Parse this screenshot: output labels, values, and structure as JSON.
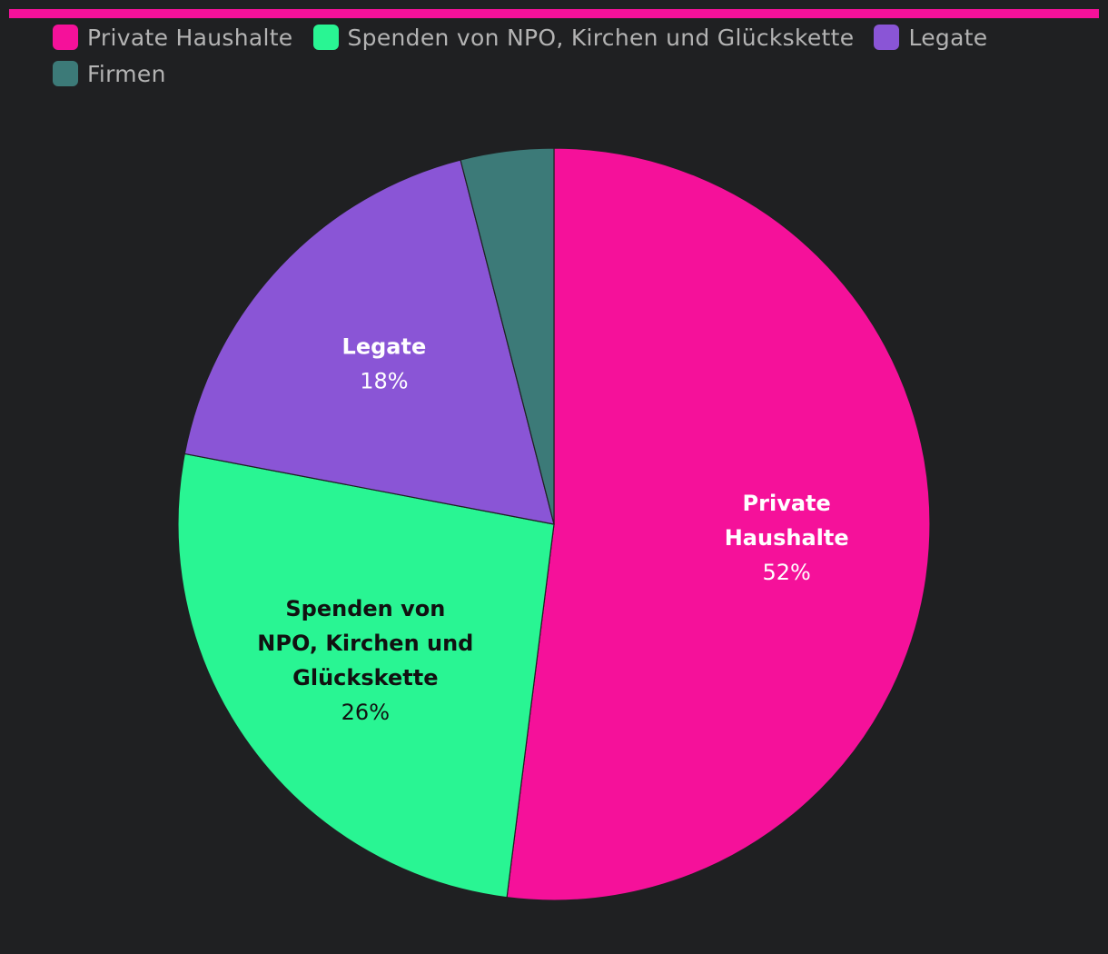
{
  "chart_data": {
    "type": "pie",
    "legend_position": "top-left",
    "accent_bar_color": "#f5119a",
    "slices": [
      {
        "label": "Private Haushalte",
        "label_lines": [
          "Private",
          "Haushalte"
        ],
        "value": 52,
        "display": "52%",
        "color": "#f5119a",
        "text_color": "#ffffff"
      },
      {
        "label": "Spenden von NPO, Kirchen und Glückskette",
        "label_lines": [
          "Spenden von",
          "NPO, Kirchen und",
          "Glückskette"
        ],
        "value": 26,
        "display": "26%",
        "color": "#29f593",
        "text_color": "#111111"
      },
      {
        "label": "Legate",
        "label_lines": [
          "Legate"
        ],
        "value": 18,
        "display": "18%",
        "color": "#8a55d6",
        "text_color": "#ffffff"
      },
      {
        "label": "Firmen",
        "label_lines": [],
        "value": 4,
        "display": "",
        "color": "#3c7a78",
        "text_color": "#ffffff"
      }
    ]
  }
}
